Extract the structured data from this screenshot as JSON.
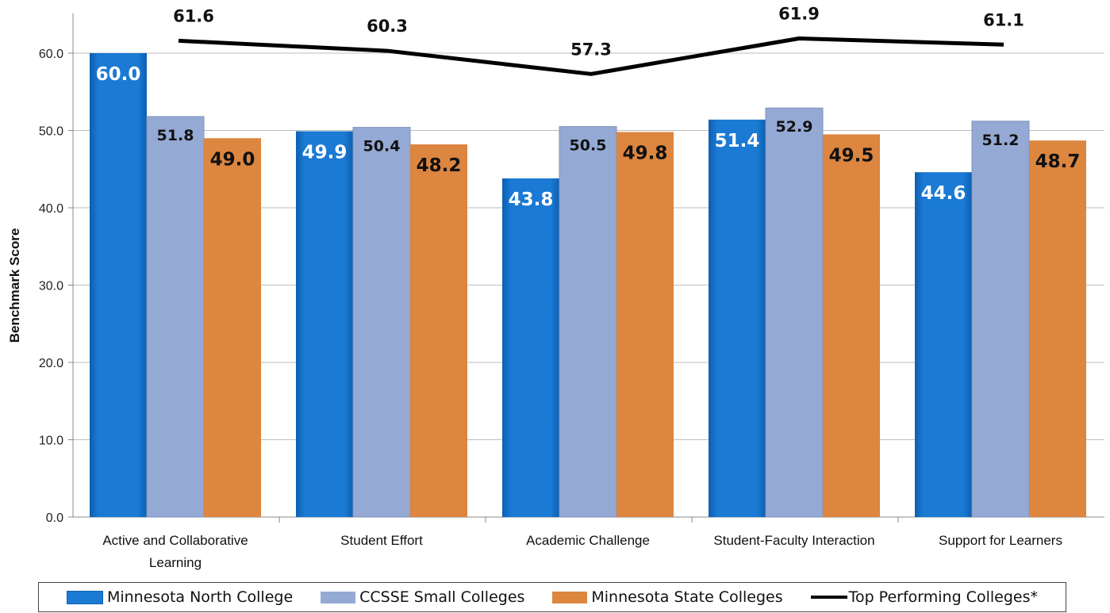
{
  "chart_data": {
    "type": "bar",
    "title": "",
    "xlabel": "",
    "ylabel": "Benchmark Score",
    "ylim": [
      0,
      60
    ],
    "yticks": [
      "0.0",
      "10.0",
      "20.0",
      "30.0",
      "40.0",
      "50.0",
      "60.0"
    ],
    "grid": true,
    "legend_position": "bottom",
    "categories": [
      [
        "Active and Collaborative",
        "Learning"
      ],
      [
        "Student Effort"
      ],
      [
        "Academic Challenge"
      ],
      [
        "Student-Faculty Interaction"
      ],
      [
        "Support for Learners"
      ]
    ],
    "series": [
      {
        "name": "Minnesota North College",
        "kind": "bar",
        "color": "#1a7ad4",
        "values": [
          60.0,
          49.9,
          43.8,
          51.4,
          44.6
        ],
        "labels": [
          "60.0",
          "49.9",
          "43.8",
          "51.4",
          "44.6"
        ]
      },
      {
        "name": "CCSSE Small Colleges",
        "kind": "bar",
        "color": "#94aad4",
        "values": [
          51.8,
          50.4,
          50.5,
          52.9,
          51.2
        ],
        "labels": [
          "51.8",
          "50.4",
          "50.5",
          "52.9",
          "51.2"
        ]
      },
      {
        "name": "Minnesota State Colleges",
        "kind": "bar",
        "color": "#dc8640",
        "values": [
          49.0,
          48.2,
          49.8,
          49.5,
          48.7
        ],
        "labels": [
          "49.0",
          "48.2",
          "49.8",
          "49.5",
          "48.7"
        ]
      },
      {
        "name": "Top Performing Colleges*",
        "kind": "line",
        "color": "#000000",
        "values": [
          61.6,
          60.3,
          57.3,
          61.9,
          61.1
        ],
        "labels": [
          "61.6",
          "60.3",
          "57.3",
          "61.9",
          "61.1"
        ]
      }
    ]
  }
}
